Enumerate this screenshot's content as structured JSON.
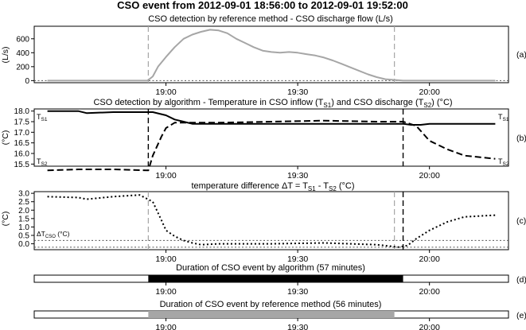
{
  "figure_title": "CSO event from 2012-09-01 18:56:00 to 2012-09-01 19:52:00",
  "colors": {
    "reference": "#a6a6a6",
    "algorithm": "#000000",
    "axis": "#000000",
    "threshold": "#555555"
  },
  "chart_data": [
    {
      "type": "line",
      "panel_label": "(a)",
      "title": "CSO detection by reference method - CSO discharge flow (L/s)",
      "ylabel": "(L/s)",
      "xlim": [
        18.5,
        20.3
      ],
      "x_tick_labels": [
        "19:00",
        "19:30",
        "20:00"
      ],
      "x_ticks": [
        19.0,
        19.5,
        20.0
      ],
      "ylim": [
        -30,
        780
      ],
      "y_ticks": [
        0,
        200,
        400,
        600
      ],
      "y_tick_labels": [
        "0",
        "200",
        "400",
        "600"
      ],
      "vlines": [
        {
          "x": 18.933,
          "color": "gray",
          "style": "dashed"
        },
        {
          "x": 19.867,
          "color": "gray",
          "style": "dashed"
        }
      ],
      "hlines": [
        {
          "y": 0,
          "style": "dotted"
        }
      ],
      "series": [
        {
          "style": "solid",
          "color": "gray",
          "x": [
            18.55,
            18.93,
            18.95,
            18.97,
            19.0,
            19.033,
            19.067,
            19.1,
            19.133,
            19.167,
            19.2,
            19.233,
            19.267,
            19.3,
            19.333,
            19.367,
            19.4,
            19.433,
            19.467,
            19.5,
            19.533,
            19.567,
            19.6,
            19.633,
            19.667,
            19.7,
            19.733,
            19.767,
            19.8,
            19.833,
            19.867,
            19.9,
            19.95,
            20.0,
            20.1,
            20.25
          ],
          "y": [
            0,
            0,
            60,
            200,
            340,
            480,
            600,
            660,
            700,
            730,
            720,
            680,
            600,
            540,
            480,
            430,
            410,
            400,
            410,
            400,
            380,
            360,
            330,
            290,
            240,
            190,
            140,
            90,
            50,
            20,
            10,
            0,
            0,
            0,
            0,
            0
          ]
        }
      ]
    },
    {
      "type": "line",
      "panel_label": "(b)",
      "title": "CSO detection by algorithm - Temperature in CSO inflow (T",
      "title_sub1": "S1",
      "title_mid": ") and CSO discharge (T",
      "title_sub2": "S2",
      "title_end": ") (°C)",
      "ylabel": "(°C)",
      "xlim": [
        18.5,
        20.3
      ],
      "x_tick_labels": [
        "19:00",
        "19:30",
        "20:00"
      ],
      "x_ticks": [
        19.0,
        19.5,
        20.0
      ],
      "ylim": [
        15.4,
        18.1
      ],
      "y_ticks": [
        15.5,
        16.0,
        16.5,
        17.0,
        17.5,
        18.0
      ],
      "y_tick_labels": [
        "15.5",
        "16.0",
        "16.5",
        "17.0",
        "17.5",
        "18.0"
      ],
      "series_labels": {
        "ts1": "T",
        "ts1_sub": "S1",
        "ts2": "T",
        "ts2_sub": "S2"
      },
      "vlines": [
        {
          "x": 18.933,
          "color": "black",
          "style": "dashed"
        },
        {
          "x": 19.9,
          "color": "black",
          "style": "dashed"
        }
      ],
      "series": [
        {
          "style": "solid",
          "color": "black",
          "x": [
            18.55,
            18.667,
            18.7,
            18.8,
            18.95,
            19.0,
            19.033,
            19.067,
            19.1,
            19.5,
            19.9,
            19.93,
            19.967,
            20.0,
            20.25
          ],
          "y": [
            18.0,
            18.0,
            17.9,
            17.95,
            17.95,
            17.8,
            17.6,
            17.5,
            17.4,
            17.4,
            17.4,
            17.35,
            17.35,
            17.4,
            17.4
          ]
        },
        {
          "style": "dashed",
          "color": "black",
          "x": [
            18.55,
            18.667,
            18.8,
            18.933,
            18.95,
            18.983,
            19.0,
            19.033,
            19.067,
            19.2,
            19.4,
            19.6,
            19.8,
            19.9,
            19.95,
            20.0,
            20.067,
            20.133,
            20.25
          ],
          "y": [
            15.2,
            15.25,
            15.25,
            15.2,
            15.9,
            16.8,
            17.2,
            17.45,
            17.45,
            17.45,
            17.5,
            17.55,
            17.5,
            17.5,
            17.3,
            16.6,
            16.2,
            15.9,
            15.75
          ]
        }
      ]
    },
    {
      "type": "line",
      "panel_label": "(c)",
      "title": "temperature difference ΔT = T",
      "title_sub1": "S1",
      "title_mid": " - T",
      "title_sub2": "S2",
      "title_end": " (°C)",
      "ylabel": "(°C)",
      "xlim": [
        18.5,
        20.3
      ],
      "x_tick_labels": [
        "19:00",
        "19:30",
        "20:00"
      ],
      "x_ticks": [
        19.0,
        19.5,
        20.0
      ],
      "ylim": [
        -0.35,
        3.1
      ],
      "y_ticks": [
        0.0,
        0.5,
        1.0,
        1.5,
        2.0,
        2.5,
        3.0
      ],
      "y_tick_labels": [
        "0.0",
        "0.5",
        "1.0",
        "1.5",
        "2.0",
        "2.5",
        "3.0"
      ],
      "threshold_label": "ΔT",
      "threshold_sub": "CSO",
      "threshold_unit": " (°C)",
      "vlines": [
        {
          "x": 19.867,
          "color": "gray",
          "style": "dashed"
        },
        {
          "x": 18.933,
          "color": "gray",
          "style": "dashed"
        },
        {
          "x": 19.9,
          "color": "black",
          "style": "dashed"
        }
      ],
      "hlines": [
        {
          "y": 0.2,
          "style": "dotted"
        },
        {
          "y": -0.2,
          "style": "dotted"
        }
      ],
      "series": [
        {
          "style": "dotted",
          "color": "black",
          "x": [
            18.55,
            18.667,
            18.7,
            18.8,
            18.9,
            18.95,
            18.983,
            19.0,
            19.033,
            19.067,
            19.1,
            19.133,
            19.2,
            19.4,
            19.6,
            19.8,
            19.883,
            19.917,
            19.95,
            20.0,
            20.067,
            20.133,
            20.25
          ],
          "y": [
            2.8,
            2.75,
            2.65,
            2.8,
            2.9,
            2.5,
            1.4,
            0.8,
            0.45,
            0.2,
            0.05,
            -0.05,
            0.0,
            0.0,
            0.05,
            -0.05,
            -0.2,
            -0.1,
            0.3,
            0.8,
            1.3,
            1.6,
            1.7
          ]
        }
      ]
    },
    {
      "type": "table",
      "panel_label": "(d)",
      "title": "Duration of CSO event by algorithm (57 minutes)",
      "xlim": [
        18.5,
        20.3
      ],
      "x_tick_labels": [
        "19:00",
        "19:30",
        "20:00"
      ],
      "x_ticks": [
        19.0,
        19.5,
        20.0
      ],
      "start": 18.933,
      "end": 19.9,
      "color": "black"
    },
    {
      "type": "table",
      "panel_label": "(e)",
      "title": "Duration of CSO event by reference method (56 minutes)",
      "xlim": [
        18.5,
        20.3
      ],
      "x_tick_labels": [
        "19:00",
        "19:30",
        "20:00"
      ],
      "x_ticks": [
        19.0,
        19.5,
        20.0
      ],
      "start": 18.933,
      "end": 19.867,
      "color": "gray"
    }
  ]
}
